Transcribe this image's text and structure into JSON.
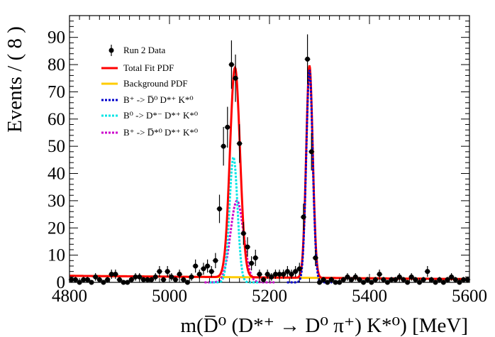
{
  "chart_data": {
    "type": "scatter",
    "xlabel": "m(D̅⁰ (D*⁺ → D⁰ π⁺) K*⁰) [MeV]",
    "ylabel": "Events / ( 8 )",
    "xlim": [
      4800,
      5600
    ],
    "ylim": [
      0,
      98
    ],
    "x_ticks": [
      "4800",
      "5000",
      "5200",
      "5400",
      "5600"
    ],
    "y_ticks": [
      "0",
      "10",
      "20",
      "30",
      "40",
      "50",
      "60",
      "70",
      "80",
      "90"
    ],
    "legend_position": "top-left",
    "colors": {
      "data": "#000000",
      "total": "#ff0000",
      "background": "#ffcc00",
      "comp1": "#0000cc",
      "comp2": "#00e5e5",
      "comp3": "#cc00cc"
    },
    "legend": {
      "data": "Run 2 Data",
      "total": "Total Fit PDF",
      "background": "Background PDF",
      "comp1": "B⁺ -> D̅⁰ D*⁺ K*⁰",
      "comp2": "B⁰ -> D*⁻ D*⁺ K*⁰",
      "comp3": "B⁺ -> D̅*⁰ D*⁺ K*⁰"
    },
    "background_line": {
      "x": [
        4800,
        5600
      ],
      "y": [
        2.4,
        1.2
      ]
    },
    "components": {
      "peak1_total": {
        "mean": 5131,
        "sigma": 10,
        "amp": 77
      },
      "peak2": {
        "mean": 5280,
        "sigma": 6.5,
        "amp": 78
      },
      "comp2_peak": {
        "mean": 5128,
        "sigma": 8,
        "amp": 46
      },
      "comp3_peak": {
        "mean": 5135,
        "sigma": 13,
        "amp": 30
      }
    },
    "series": [
      {
        "name": "Run 2 Data",
        "x": [
          4804,
          4812,
          4820,
          4828,
          4836,
          4844,
          4852,
          4860,
          4868,
          4876,
          4884,
          4892,
          4900,
          4908,
          4916,
          4924,
          4932,
          4940,
          4948,
          4956,
          4964,
          4972,
          4980,
          4988,
          4996,
          5004,
          5012,
          5020,
          5028,
          5036,
          5044,
          5052,
          5060,
          5068,
          5076,
          5084,
          5092,
          5100,
          5108,
          5116,
          5124,
          5132,
          5140,
          5148,
          5156,
          5164,
          5172,
          5180,
          5188,
          5196,
          5204,
          5212,
          5220,
          5228,
          5236,
          5244,
          5252,
          5260,
          5268,
          5276,
          5284,
          5292,
          5300,
          5308,
          5316,
          5324,
          5332,
          5340,
          5348,
          5356,
          5364,
          5372,
          5380,
          5388,
          5396,
          5404,
          5412,
          5420,
          5428,
          5436,
          5444,
          5452,
          5460,
          5468,
          5476,
          5484,
          5492,
          5500,
          5508,
          5516,
          5524,
          5532,
          5540,
          5548,
          5556,
          5564,
          5572,
          5580,
          5588,
          5596
        ],
        "y": [
          1,
          1,
          0,
          1,
          1,
          0,
          2,
          1,
          0,
          1,
          3,
          3,
          1,
          0,
          0,
          1,
          2,
          2,
          1,
          1,
          1,
          2,
          4,
          1,
          4,
          2,
          1,
          3,
          1,
          0,
          2,
          6,
          3,
          5,
          6,
          4,
          8,
          27,
          50,
          57,
          80,
          75,
          51,
          18,
          13,
          7,
          9,
          3,
          1,
          3,
          2,
          3,
          3,
          3,
          4,
          3,
          4,
          5,
          24,
          82,
          48,
          9,
          0,
          1,
          0,
          1,
          0,
          0,
          1,
          2,
          1,
          2,
          1,
          0,
          1,
          0,
          1,
          3,
          1,
          0,
          1,
          1,
          2,
          1,
          0,
          2,
          1,
          0,
          1,
          4,
          1,
          0,
          1,
          0,
          1,
          2,
          1,
          0,
          1,
          1
        ],
        "yerr": [
          1.0,
          1.0,
          0.8,
          1.0,
          1.0,
          0.8,
          1.4,
          1.0,
          0.8,
          1.0,
          1.7,
          1.7,
          1.0,
          0.8,
          0.8,
          1.0,
          1.4,
          1.4,
          1.0,
          1.0,
          1.0,
          1.4,
          2.0,
          1.0,
          2.0,
          1.4,
          1.0,
          1.7,
          1.0,
          0.8,
          1.4,
          2.4,
          1.7,
          2.2,
          2.4,
          2.0,
          2.8,
          5.2,
          7.1,
          7.5,
          8.9,
          8.7,
          7.1,
          4.2,
          3.6,
          2.6,
          3.0,
          1.7,
          1.0,
          1.7,
          1.4,
          1.7,
          1.7,
          1.7,
          2.0,
          1.7,
          2.0,
          2.2,
          4.9,
          9.1,
          6.9,
          3.0,
          0.8,
          1.0,
          0.8,
          1.0,
          0.8,
          0.8,
          1.0,
          1.4,
          1.0,
          1.4,
          1.0,
          0.8,
          1.0,
          0.8,
          1.0,
          1.7,
          1.0,
          0.8,
          1.0,
          1.0,
          1.4,
          1.0,
          0.8,
          1.4,
          1.0,
          0.8,
          1.0,
          2.0,
          1.0,
          0.8,
          1.0,
          0.8,
          1.0,
          1.4,
          1.0,
          0.8,
          1.0,
          1.0
        ]
      }
    ]
  }
}
